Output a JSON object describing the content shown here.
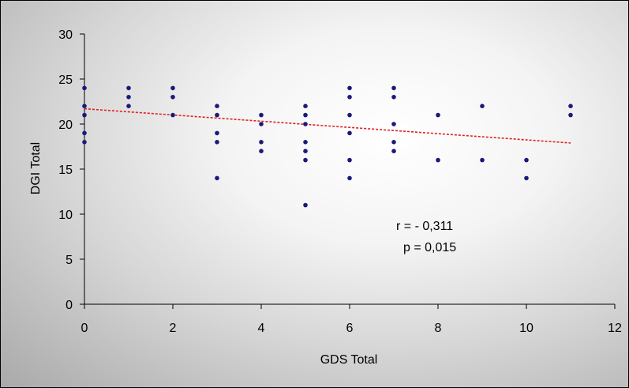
{
  "chart_data": {
    "type": "scatter",
    "title": "",
    "xlabel": "GDS Total",
    "ylabel": "DGI Total",
    "xlim": [
      0,
      12
    ],
    "ylim": [
      0,
      30
    ],
    "x_ticks": [
      "0",
      "2",
      "4",
      "6",
      "8",
      "10",
      "12"
    ],
    "y_ticks": [
      "0",
      "5",
      "10",
      "15",
      "20",
      "25",
      "30"
    ],
    "grid": false,
    "legend": "none",
    "point_color": "#1a1a7a",
    "trend_color": "#e02020",
    "points": [
      {
        "x": 0,
        "y": 24
      },
      {
        "x": 0,
        "y": 22
      },
      {
        "x": 0,
        "y": 21
      },
      {
        "x": 0,
        "y": 19
      },
      {
        "x": 0,
        "y": 18
      },
      {
        "x": 1,
        "y": 24
      },
      {
        "x": 1,
        "y": 23
      },
      {
        "x": 1,
        "y": 22
      },
      {
        "x": 2,
        "y": 24
      },
      {
        "x": 2,
        "y": 23
      },
      {
        "x": 2,
        "y": 21
      },
      {
        "x": 3,
        "y": 22
      },
      {
        "x": 3,
        "y": 21
      },
      {
        "x": 3,
        "y": 19
      },
      {
        "x": 3,
        "y": 18
      },
      {
        "x": 3,
        "y": 14
      },
      {
        "x": 4,
        "y": 21
      },
      {
        "x": 4,
        "y": 20
      },
      {
        "x": 4,
        "y": 18
      },
      {
        "x": 4,
        "y": 17
      },
      {
        "x": 5,
        "y": 22
      },
      {
        "x": 5,
        "y": 21
      },
      {
        "x": 5,
        "y": 20
      },
      {
        "x": 5,
        "y": 18
      },
      {
        "x": 5,
        "y": 17
      },
      {
        "x": 5,
        "y": 16
      },
      {
        "x": 5,
        "y": 11
      },
      {
        "x": 6,
        "y": 24
      },
      {
        "x": 6,
        "y": 23
      },
      {
        "x": 6,
        "y": 21
      },
      {
        "x": 6,
        "y": 19
      },
      {
        "x": 6,
        "y": 16
      },
      {
        "x": 6,
        "y": 14
      },
      {
        "x": 7,
        "y": 24
      },
      {
        "x": 7,
        "y": 23
      },
      {
        "x": 7,
        "y": 20
      },
      {
        "x": 7,
        "y": 18
      },
      {
        "x": 7,
        "y": 17
      },
      {
        "x": 8,
        "y": 21
      },
      {
        "x": 8,
        "y": 16
      },
      {
        "x": 9,
        "y": 22
      },
      {
        "x": 9,
        "y": 16
      },
      {
        "x": 10,
        "y": 16
      },
      {
        "x": 10,
        "y": 14
      },
      {
        "x": 11,
        "y": 22
      },
      {
        "x": 11,
        "y": 21
      }
    ],
    "trendline": {
      "x": [
        0,
        11
      ],
      "y": [
        21.7,
        17.9
      ]
    },
    "annotations": [
      "r  =  - 0,311",
      "p = 0,015"
    ]
  }
}
